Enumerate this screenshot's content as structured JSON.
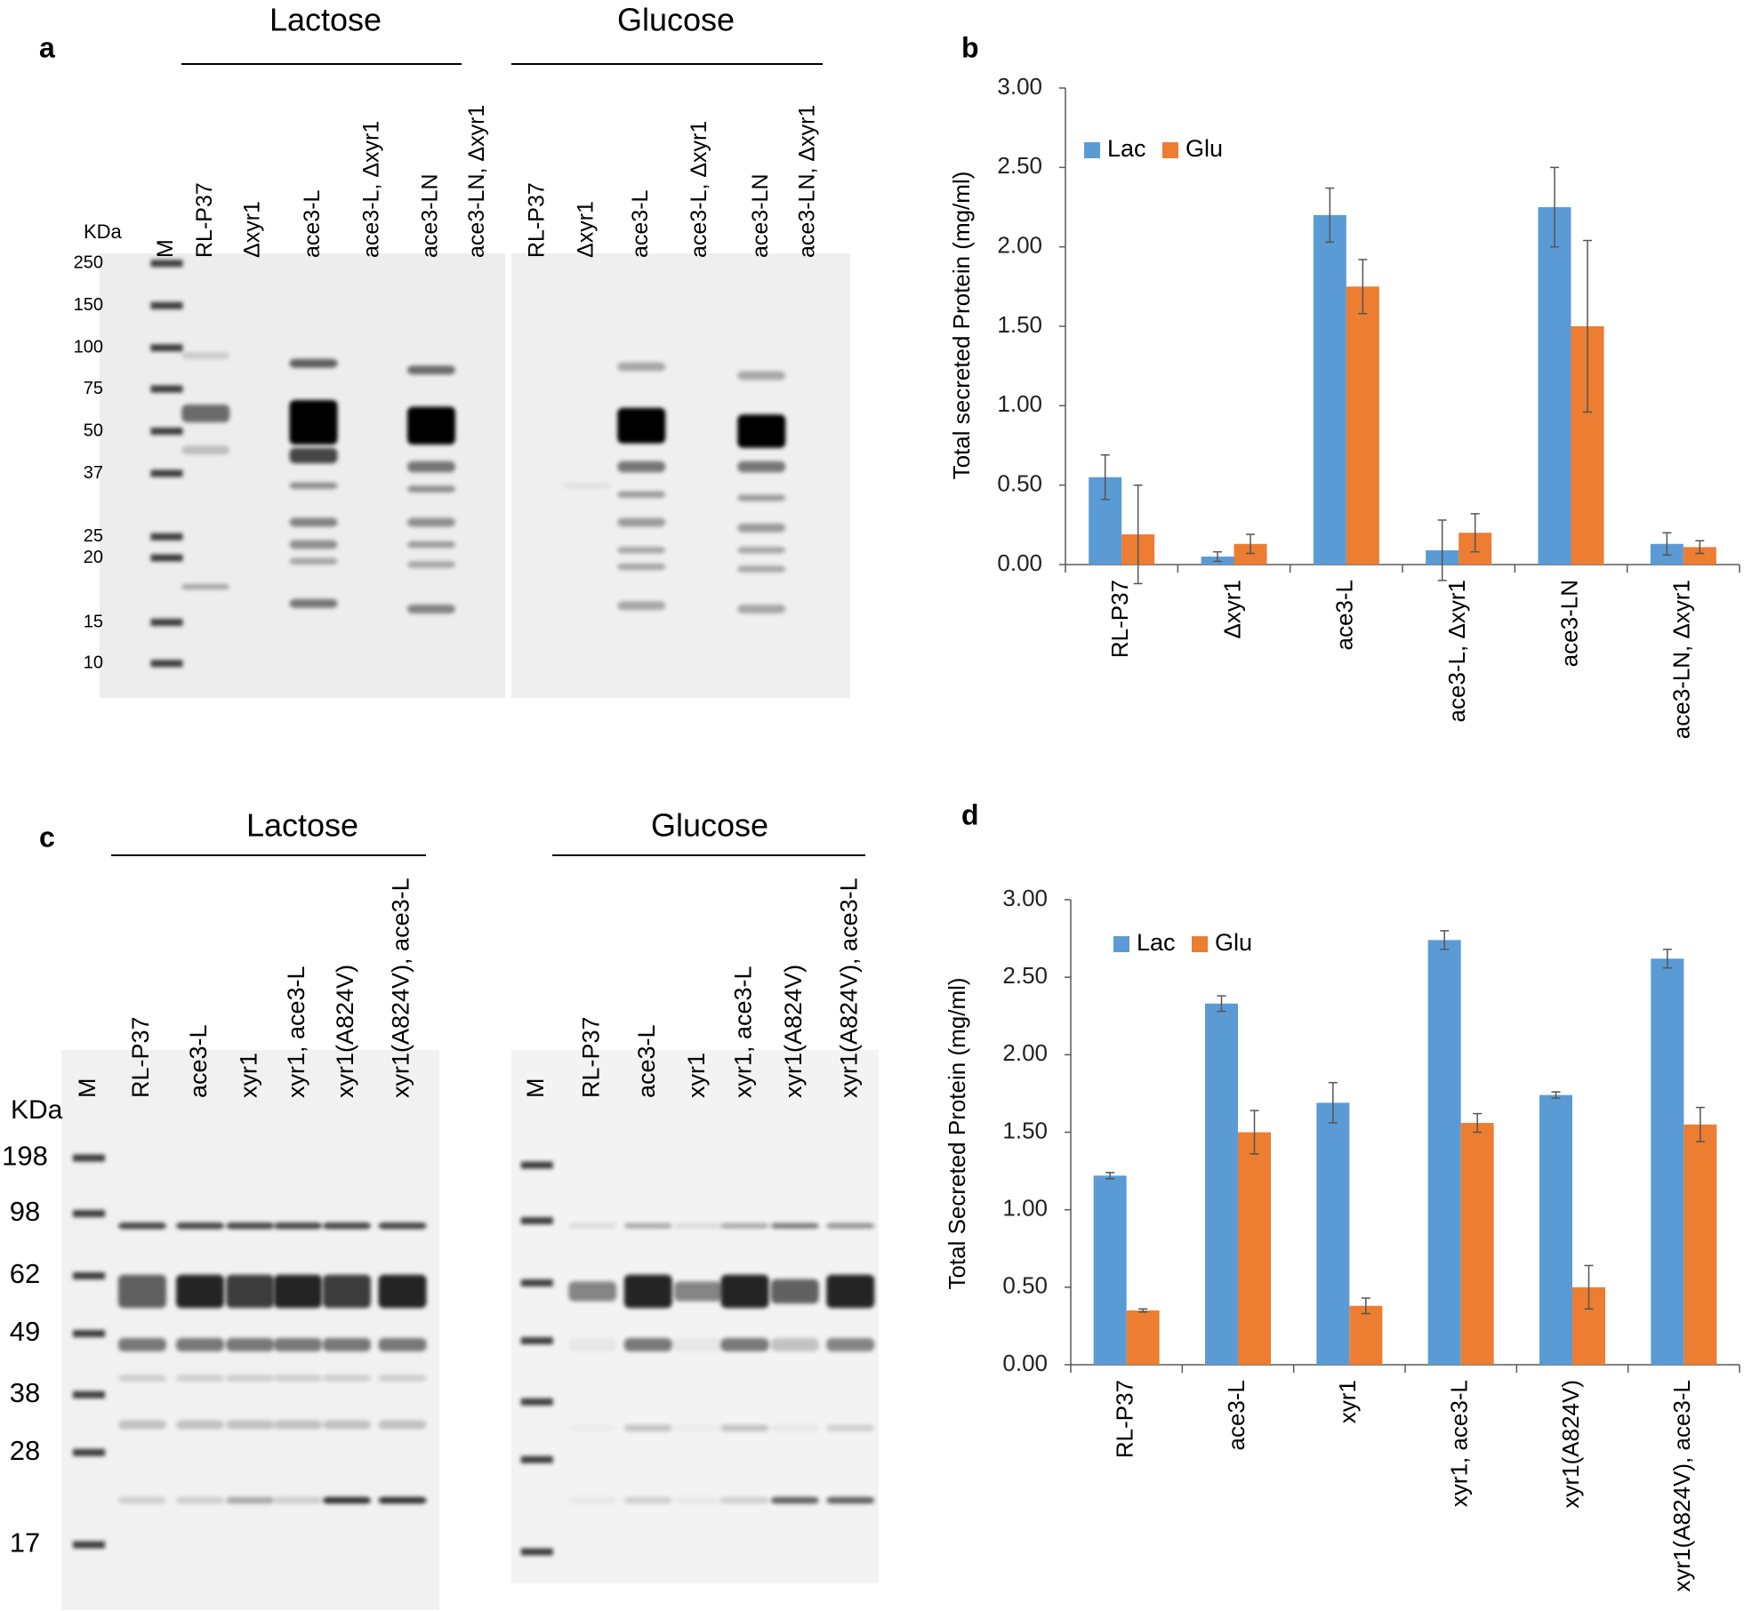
{
  "gels": [
    {
      "panel": "a",
      "conditions": [
        "Lactose",
        "Glucose"
      ],
      "unit": "KDa",
      "markers": [
        250,
        150,
        100,
        75,
        50,
        37,
        25,
        20,
        15,
        10
      ],
      "lanes": [
        "M",
        "RL-P37",
        "Δxyr1",
        "ace3-L",
        "ace3-L, Δxyr1",
        "ace3-LN",
        "ace3-LN, Δxyr1",
        "RL-P37",
        "Δxyr1",
        "ace3-L",
        "ace3-L, Δxyr1",
        "ace3-LN",
        "ace3-LN, Δxyr1"
      ]
    },
    {
      "panel": "c",
      "conditions": [
        "Lactose",
        "Glucose"
      ],
      "unit": "KDa",
      "markers": [
        198,
        98,
        62,
        49,
        38,
        28,
        17
      ],
      "lanes": [
        "M",
        "RL-P37",
        "ace3-L",
        "xyr1",
        "xyr1, ace3-L",
        "xyr1(A824V)",
        "xyr1(A824V), ace3-L",
        "M",
        "RL-P37",
        "ace3-L",
        "xyr1",
        "xyr1, ace3-L",
        "xyr1(A824V)",
        "xyr1(A824V), ace3-L"
      ]
    }
  ],
  "chart_data": [
    {
      "type": "bar",
      "panel": "b",
      "y_label": "Total secreted Protein (mg/ml)",
      "categories": [
        "RL-P37",
        "Δxyr1",
        "ace3-L",
        "ace3-L, Δxyr1",
        "ace3-LN",
        "ace3-LN, Δxyr1"
      ],
      "series": [
        {
          "name": "Lac",
          "color": "#5b9bd5",
          "values": [
            0.55,
            0.05,
            2.2,
            0.09,
            2.25,
            0.13
          ],
          "errors": [
            0.14,
            0.03,
            0.17,
            0.19,
            0.25,
            0.07
          ]
        },
        {
          "name": "Glu",
          "color": "#ed7d31",
          "values": [
            0.19,
            0.13,
            1.75,
            0.2,
            1.5,
            0.11
          ],
          "errors": [
            0.31,
            0.06,
            0.17,
            0.12,
            0.54,
            0.04
          ]
        }
      ],
      "ylim": [
        0,
        3
      ],
      "yticks": [
        {
          "value": 0,
          "label": "0.00"
        },
        {
          "value": 0.5,
          "label": "0.50"
        },
        {
          "value": 1,
          "label": "1.00"
        },
        {
          "value": 1.5,
          "label": "1.50"
        },
        {
          "value": 2,
          "label": "2.00"
        },
        {
          "value": 2.5,
          "label": "2.50"
        },
        {
          "value": 3,
          "label": "3.00"
        }
      ],
      "legend": "upper left"
    },
    {
      "type": "bar",
      "panel": "d",
      "y_label": "Total Secreted Protein (mg/ml)",
      "categories": [
        "RL-P37",
        "ace3-L",
        "xyr1",
        "xyr1, ace3-L",
        "xyr1(A824V)",
        "xyr1(A824V), ace3-L"
      ],
      "series": [
        {
          "name": "Lac",
          "color": "#5b9bd5",
          "values": [
            1.22,
            2.33,
            1.69,
            2.74,
            1.74,
            2.62
          ],
          "errors": [
            0.02,
            0.05,
            0.13,
            0.06,
            0.02,
            0.06
          ]
        },
        {
          "name": "Glu",
          "color": "#ed7d31",
          "values": [
            0.35,
            1.5,
            0.38,
            1.56,
            0.5,
            1.55
          ],
          "errors": [
            0.01,
            0.14,
            0.05,
            0.06,
            0.14,
            0.11
          ]
        }
      ],
      "ylim": [
        0,
        3
      ],
      "yticks": [
        {
          "value": 0,
          "label": "0.00"
        },
        {
          "value": 0.5,
          "label": "0.50"
        },
        {
          "value": 1,
          "label": "1.00"
        },
        {
          "value": 1.5,
          "label": "1.50"
        },
        {
          "value": 2,
          "label": "2.00"
        },
        {
          "value": 2.5,
          "label": "2.50"
        },
        {
          "value": 3,
          "label": "3.00"
        }
      ],
      "legend": "upper left"
    }
  ]
}
